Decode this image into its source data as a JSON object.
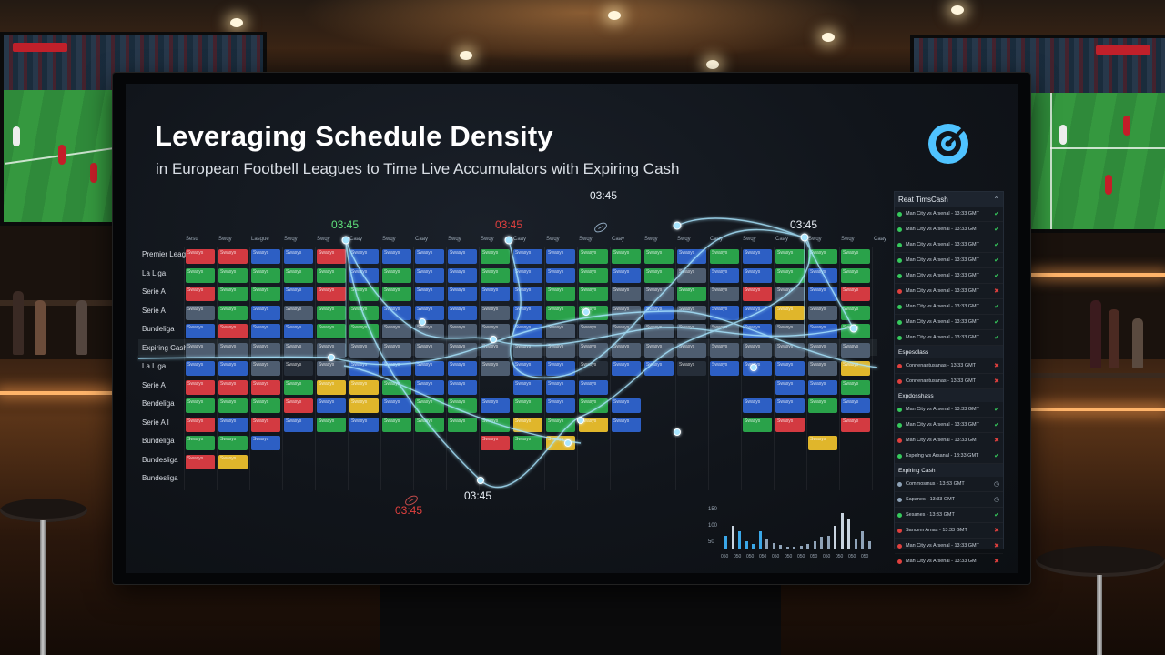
{
  "presentation": {
    "title": "Leveraging Schedule Density",
    "subtitle": "in European Footbell Leagues to Time Live Accumulators with Expiring Cash",
    "logo_icon": "target-icon"
  },
  "schedule": {
    "column_headers": [
      "Sesu",
      "Swqy",
      "Lasgue",
      "Swqy",
      "Swqy",
      "Caay",
      "Swqy",
      "Caay",
      "Swqy",
      "Swqy",
      "Caay",
      "Swqy",
      "Swqy",
      "Caay",
      "Swqy",
      "Swqy",
      "Caay",
      "Swqy",
      "Caay",
      "Swqy",
      "Swqy",
      "Caay"
    ],
    "row_labels": [
      "Premier Leagus",
      "La Liga",
      "Serie A",
      "Serie A",
      "Bundeliga",
      "Expiring Cash",
      "La Liga",
      "Serie A",
      "Bendeliga",
      "Serie A I",
      "Bundeliga",
      "Bundesliga",
      "Bundesliga"
    ],
    "cell_text": "Swasys"
  },
  "time_markers": [
    "03:45",
    "03:45",
    "03:45",
    "03:45",
    "03:45",
    "03:45"
  ],
  "colors": {
    "accent": "#7fe0ff",
    "alert": "#e0403e",
    "go": "#36c95c"
  },
  "side_panel": {
    "header": "Reat TimsCash",
    "collapse_icon": "chevron-up-icon",
    "rows": [
      {
        "text": "Man City vs Arsenal - 13:33 GMT",
        "status": "check"
      },
      {
        "text": "Man City vs Arsenal - 13:33 GMT",
        "status": "check"
      },
      {
        "text": "Man City vs Arsenal - 13:33 GMT",
        "status": "check"
      },
      {
        "text": "Man City vs Arsenal - 13:33 GMT",
        "status": "check"
      },
      {
        "text": "Man City vs Arsenal - 13:33 GMT",
        "status": "check"
      },
      {
        "text": "Man City vs Arsenal - 13:33 GMT",
        "status": "cross"
      },
      {
        "text": "Man City vs Arsenal - 13:33 GMT",
        "status": "check"
      },
      {
        "text": "Man City vs Arsenal - 13:33 GMT",
        "status": "check"
      },
      {
        "text": "Man City vs Arsenal - 13:33 GMT",
        "status": "check"
      }
    ],
    "section1": "Espesdlass",
    "section1_rows": [
      {
        "text": "Connenantusanas - 13:33 GMT",
        "status": "cross"
      },
      {
        "text": "Connenantusanas - 13:33 GMT",
        "status": "cross"
      }
    ],
    "section2": "Expdosshass",
    "section2_rows": [
      {
        "text": "Man City vs Arsenal - 13:33 GMT",
        "status": "check"
      },
      {
        "text": "Man City vs Arsenal - 13:33 GMT",
        "status": "check"
      },
      {
        "text": "Man City vs Arsenal - 13:33 GMT",
        "status": "cross"
      },
      {
        "text": "Espelng ws Arsanal - 13:33 GMT",
        "status": "check"
      }
    ],
    "section3": "Expiring Cash",
    "section3_rows": [
      {
        "text": "Commosmus - 13:33 GMT",
        "status": "clock"
      },
      {
        "text": "Sapanes - 13:33 GMT",
        "status": "clock"
      },
      {
        "text": "Sesanes - 13:33 GMT",
        "status": "check"
      },
      {
        "text": "Sancem Amas - 13:33 GMT",
        "status": "cross"
      },
      {
        "text": "Man City vs Arsenal - 13:33 GMT",
        "status": "cross"
      },
      {
        "text": "Man City vs Arsenal - 13:33 GMT",
        "status": "cross"
      },
      {
        "text": "Man City vs Arsenal - 13:33 GMT",
        "status": "cross"
      }
    ]
  },
  "mini_chart": {
    "y_ticks": [
      "150",
      "100",
      "50"
    ],
    "x_ticks": [
      "050",
      "050",
      "050",
      "050",
      "050",
      "050",
      "050",
      "050",
      "050",
      "050",
      "050",
      "050"
    ],
    "values": [
      22,
      40,
      30,
      12,
      8,
      30,
      18,
      10,
      6,
      4,
      4,
      5,
      8,
      12,
      20,
      22,
      40,
      62,
      52,
      18,
      30,
      12
    ]
  }
}
